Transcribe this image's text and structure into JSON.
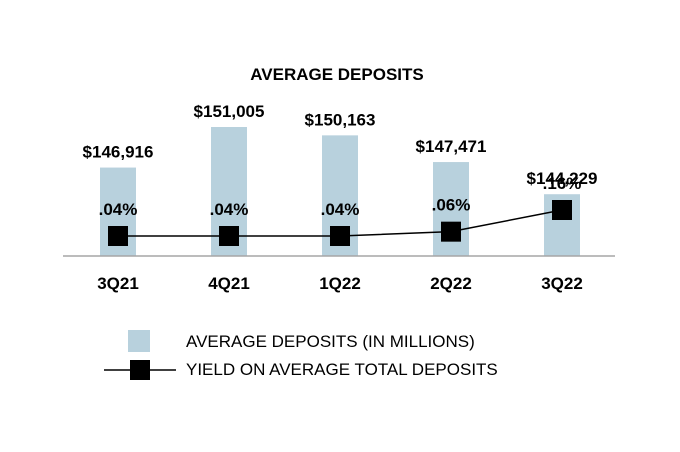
{
  "chart_data": {
    "type": "bar",
    "title": "AVERAGE DEPOSITS",
    "categories": [
      "3Q21",
      "4Q21",
      "1Q22",
      "2Q22",
      "3Q22"
    ],
    "series": [
      {
        "name": "AVERAGE DEPOSITS (IN MILLIONS)",
        "type": "bar",
        "values": [
          146916,
          151005,
          150163,
          147471,
          144229
        ],
        "labels": [
          "$146,916",
          "$151,005",
          "$150,163",
          "$147,471",
          "$144,229"
        ],
        "color": "#b8d1dd"
      },
      {
        "name": "YIELD ON AVERAGE TOTAL DEPOSITS",
        "type": "line",
        "values": [
          0.04,
          0.04,
          0.04,
          0.06,
          0.16
        ],
        "labels": [
          ".04%",
          ".04%",
          ".04%",
          ".06%",
          ".16%"
        ],
        "color": "#000000"
      }
    ],
    "xlabel": "",
    "ylabel": ""
  }
}
